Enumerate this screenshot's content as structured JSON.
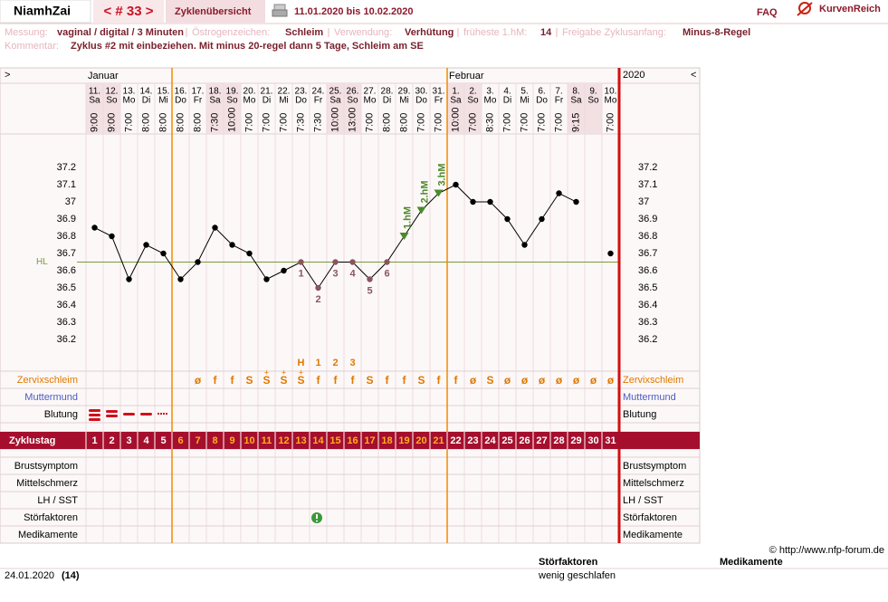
{
  "header": {
    "user": "NiamhZai",
    "cycle_nav": "< # 33 >",
    "tab": "Zyklenübersicht",
    "period": "11.01.2020 bis 10.02.2020",
    "faq": "FAQ",
    "logo": "KurvenReich"
  },
  "info": [
    {
      "label": "Messung:",
      "value": "vaginal / digital / 3 Minuten"
    },
    {
      "label": "Östrogenzeichen:",
      "value": "Schleim"
    },
    {
      "label": "Verwendung:",
      "value": "Verhütung"
    },
    {
      "label": "früheste 1.hM:",
      "value": "14"
    },
    {
      "label": "Freigabe Zyklusanfang:",
      "value": "Minus-8-Regel"
    }
  ],
  "comment": {
    "label": "Kommentar:",
    "value": "Zyklus #2  mit einbeziehen. Mit minus 20-regel dann 5 Tage,  Schleim am SE"
  },
  "chart_data": {
    "type": "line",
    "nav": [
      ">",
      "<"
    ],
    "year": "2020",
    "months": [
      {
        "label": "Januar",
        "day": 1
      },
      {
        "label": "Februar",
        "day": 22
      }
    ],
    "dates": [
      "11.",
      "12.",
      "13.",
      "14.",
      "15.",
      "16.",
      "17.",
      "18.",
      "19.",
      "20.",
      "21.",
      "22.",
      "23.",
      "24.",
      "25.",
      "26.",
      "27.",
      "28.",
      "29.",
      "30.",
      "31.",
      "1.",
      "2.",
      "3.",
      "4.",
      "5.",
      "6.",
      "7.",
      "8.",
      "9.",
      "10."
    ],
    "weekdays": [
      "Sa",
      "So",
      "Mo",
      "Di",
      "Mi",
      "Do",
      "Fr",
      "Sa",
      "So",
      "Mo",
      "Di",
      "Mi",
      "Do",
      "Fr",
      "Sa",
      "So",
      "Mo",
      "Di",
      "Mi",
      "Do",
      "Fr",
      "Sa",
      "So",
      "Mo",
      "Di",
      "Mi",
      "Do",
      "Fr",
      "Sa",
      "So",
      "Mo"
    ],
    "times": [
      "9:00",
      "9:00",
      "7:00",
      "8:00",
      "8:00",
      "8:00",
      "8:00",
      "7:30",
      "10:00",
      "7:00",
      "7:00",
      "7:00",
      "7:30",
      "7:30",
      "10:00",
      "13:00",
      "7:00",
      "8:00",
      "8:00",
      "7:00",
      "7:00",
      "10:00",
      "7:00",
      "8:30",
      "7:00",
      "7:00",
      "7:00",
      "7:00",
      "9:15",
      null,
      "7:00"
    ],
    "x_label": "Zyklustag",
    "categories": [
      1,
      2,
      3,
      4,
      5,
      6,
      7,
      8,
      9,
      10,
      11,
      12,
      13,
      14,
      15,
      16,
      17,
      18,
      19,
      20,
      21,
      22,
      23,
      24,
      25,
      26,
      27,
      28,
      29,
      30,
      31
    ],
    "values": [
      36.85,
      36.8,
      36.55,
      36.75,
      36.7,
      36.55,
      36.65,
      36.85,
      36.75,
      36.7,
      36.55,
      36.6,
      36.65,
      36.5,
      36.65,
      36.65,
      36.55,
      36.65,
      36.8,
      36.95,
      37.05,
      37.1,
      37.0,
      37.0,
      36.9,
      36.75,
      36.9,
      37.05,
      37.0,
      null,
      36.7
    ],
    "color": "#000000",
    "ylim": [
      36.0,
      37.4
    ],
    "yticks": [
      36.2,
      36.3,
      36.4,
      36.5,
      36.6,
      36.7,
      36.8,
      36.9,
      37,
      37.1,
      37.2
    ],
    "hl": {
      "label": "HL",
      "value": 36.65,
      "color": "#7a9a3a"
    },
    "low_annotations": [
      {
        "day": 13,
        "label": "1"
      },
      {
        "day": 14,
        "label": "2"
      },
      {
        "day": 15,
        "label": "3"
      },
      {
        "day": 16,
        "label": "4"
      },
      {
        "day": 17,
        "label": "5"
      },
      {
        "day": 18,
        "label": "6"
      }
    ],
    "hm_annotations": [
      {
        "day": 19,
        "label": "1.hM"
      },
      {
        "day": 20,
        "label": "2.hM"
      },
      {
        "day": 21,
        "label": "3.hM"
      }
    ],
    "fertile_window": [
      6,
      21
    ],
    "mucus_peak": [
      null,
      null,
      null,
      null,
      null,
      null,
      null,
      null,
      null,
      null,
      null,
      null,
      "H",
      "1",
      "2",
      "3",
      null,
      null,
      null,
      null,
      null,
      null,
      null,
      null,
      null,
      null,
      null,
      null,
      null,
      null,
      null
    ],
    "mucus_plus": [
      null,
      null,
      null,
      null,
      null,
      null,
      null,
      null,
      null,
      null,
      "+",
      "+",
      "+",
      null,
      null,
      null,
      null,
      null,
      null,
      null,
      null,
      null,
      null,
      null,
      null,
      null,
      null,
      null,
      null,
      null,
      null
    ],
    "rows": [
      {
        "name": "Zervixschleim",
        "color": "#e07800",
        "values": [
          null,
          null,
          null,
          null,
          null,
          null,
          "ø",
          "f",
          "f",
          "S",
          "S",
          "S",
          "S",
          "f",
          "f",
          "f",
          "S",
          "f",
          "f",
          "S",
          "f",
          "f",
          "ø",
          "S",
          "ø",
          "ø",
          "ø",
          "ø",
          "ø",
          "ø",
          "ø"
        ]
      },
      {
        "name": "Muttermund",
        "color": "#4a5cc0"
      },
      {
        "name": "Blutung",
        "color": "#000000"
      }
    ],
    "lower_rows": [
      "Brustsymptom",
      "Mittelschmerz",
      "LH / SST",
      "Störfaktoren",
      "Medikamente"
    ]
  },
  "footer": {
    "copyright": "© http://www.nfp-forum.de",
    "headers": [
      "Störfaktoren",
      "Medikamente"
    ],
    "rows": [
      {
        "date": "24.01.2020",
        "day": "(14)",
        "stoer": "wenig geschlafen"
      }
    ]
  }
}
